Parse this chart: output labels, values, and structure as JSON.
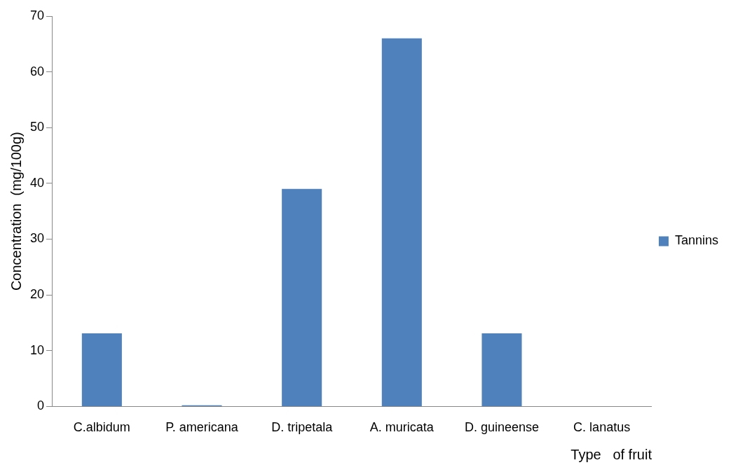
{
  "chart_data": {
    "type": "bar",
    "xlabel": "Type   of fruit",
    "ylabel": "Concentration  (mg/100g)",
    "categories": [
      "C.albidum",
      "P. americana",
      "D. tripetala",
      "A. muricata",
      "D. guineense",
      "C. lanatus"
    ],
    "series": [
      {
        "name": "Tannins",
        "color": "#4f81bd",
        "values": [
          13.1,
          0.2,
          39,
          66,
          13.1,
          0
        ]
      }
    ],
    "ylim": [
      0,
      70
    ],
    "yticks": [
      0,
      10,
      20,
      30,
      40,
      50,
      60,
      70
    ],
    "grid": false,
    "legend": "right"
  }
}
